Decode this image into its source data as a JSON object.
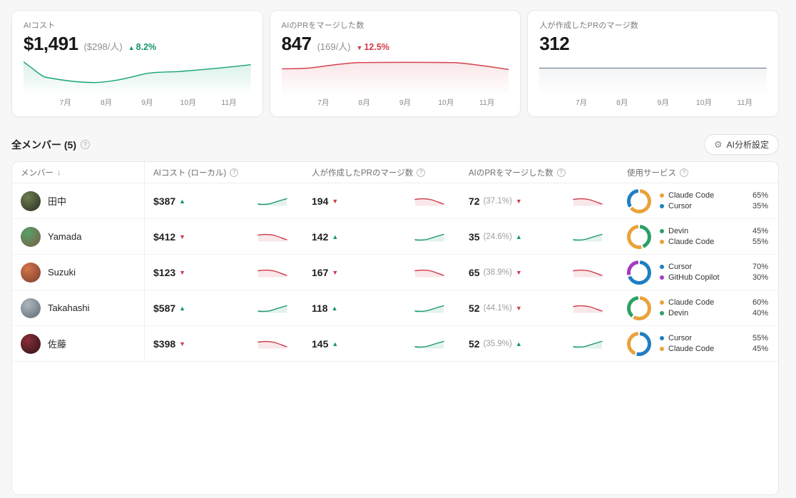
{
  "months": [
    "7月",
    "8月",
    "9月",
    "10月",
    "11月"
  ],
  "icons": {
    "gear": "⚙",
    "help": "?",
    "sort_desc": "↓",
    "up_arrow": "▲",
    "down_arrow": "▼"
  },
  "colors": {
    "positive": "#149467",
    "negative": "#d03a4b",
    "neutral_line": "#7b8794"
  },
  "stat_cards": [
    {
      "label": "AIコスト",
      "value": "$1,491",
      "sub": "($298/人)",
      "trend": "8.2%",
      "trend_dir": "up"
    },
    {
      "label": "AIのPRをマージした数",
      "value": "847",
      "sub": "(169/人)",
      "trend": "12.5%",
      "trend_dir": "down"
    },
    {
      "label": "人が作成したPRのマージ数",
      "value": "312"
    }
  ],
  "chart_data": [
    {
      "type": "line",
      "title": "AIコスト",
      "categories": [
        "7月",
        "8月",
        "9月",
        "10月",
        "11月"
      ],
      "values_normalized": [
        55,
        45,
        62,
        67,
        84
      ],
      "color": "#16a571",
      "legend_position": "none",
      "grid": false
    },
    {
      "type": "line",
      "title": "AIのPRをマージした数",
      "categories": [
        "7月",
        "8月",
        "9月",
        "10月",
        "11月"
      ],
      "values_normalized": [
        52,
        70,
        71,
        71,
        48
      ],
      "color": "#d4434f",
      "legend_position": "none",
      "grid": false
    },
    {
      "type": "line",
      "title": "人が作成したPRのマージ数",
      "categories": [
        "7月",
        "8月",
        "9月",
        "10月",
        "11月"
      ],
      "values_normalized": [
        50,
        50,
        50,
        50,
        50
      ],
      "color": "#7b8794",
      "legend_position": "none",
      "grid": false
    }
  ],
  "section": {
    "title": "全メンバー (5)",
    "settings_label": "AI分析設定"
  },
  "table": {
    "columns": [
      {
        "label": "メンバー",
        "sort": "↓"
      },
      {
        "label": "AIコスト (ローカル)",
        "help": true
      },
      {
        "label": "人が作成したPRのマージ数",
        "help": true
      },
      {
        "label": "AIのPRをマージした数",
        "help": true
      },
      {
        "label": "使用サービス",
        "help": true
      }
    ],
    "rows": [
      {
        "name": "田中",
        "avatar_colors": [
          "#6b7f4f",
          "#2d2a24"
        ],
        "cost": "$387",
        "cost_dir": "up",
        "created": "194",
        "created_dir": "down",
        "merged": "72",
        "merged_pct": "(37.1%)",
        "merged_dir": "down",
        "services": [
          {
            "name": "Claude Code",
            "pct": "65%",
            "color": "#E9A23B"
          },
          {
            "name": "Cursor",
            "pct": "35%",
            "color": "#1E7FC2"
          }
        ]
      },
      {
        "name": "Yamada",
        "avatar_colors": [
          "#58a06a",
          "#7a5b43"
        ],
        "cost": "$412",
        "cost_dir": "down",
        "created": "142",
        "created_dir": "up",
        "merged": "35",
        "merged_pct": "(24.6%)",
        "merged_dir": "up",
        "services": [
          {
            "name": "Devin",
            "pct": "45%",
            "color": "#2BA164"
          },
          {
            "name": "Claude Code",
            "pct": "55%",
            "color": "#E9A23B"
          }
        ]
      },
      {
        "name": "Suzuki",
        "avatar_colors": [
          "#d2764a",
          "#7e3b2e"
        ],
        "cost": "$123",
        "cost_dir": "down",
        "created": "167",
        "created_dir": "down",
        "merged": "65",
        "merged_pct": "(38.9%)",
        "merged_dir": "down",
        "services": [
          {
            "name": "Cursor",
            "pct": "70%",
            "color": "#1E7FC2"
          },
          {
            "name": "GitHub Copilot",
            "pct": "30%",
            "color": "#A33CC2"
          }
        ]
      },
      {
        "name": "Takahashi",
        "avatar_colors": [
          "#aeb6bd",
          "#5f6a72"
        ],
        "cost": "$587",
        "cost_dir": "up",
        "created": "118",
        "created_dir": "up",
        "merged": "52",
        "merged_pct": "(44.1%)",
        "merged_dir": "down",
        "services": [
          {
            "name": "Claude Code",
            "pct": "60%",
            "color": "#E9A23B"
          },
          {
            "name": "Devin",
            "pct": "40%",
            "color": "#2BA164"
          }
        ]
      },
      {
        "name": "佐藤",
        "avatar_colors": [
          "#8a2f3a",
          "#2e1216"
        ],
        "cost": "$398",
        "cost_dir": "down",
        "created": "145",
        "created_dir": "up",
        "merged": "52",
        "merged_pct": "(35.9%)",
        "merged_dir": "up",
        "services": [
          {
            "name": "Cursor",
            "pct": "55%",
            "color": "#1E7FC2"
          },
          {
            "name": "Claude Code",
            "pct": "45%",
            "color": "#E9A23B"
          }
        ]
      }
    ]
  }
}
